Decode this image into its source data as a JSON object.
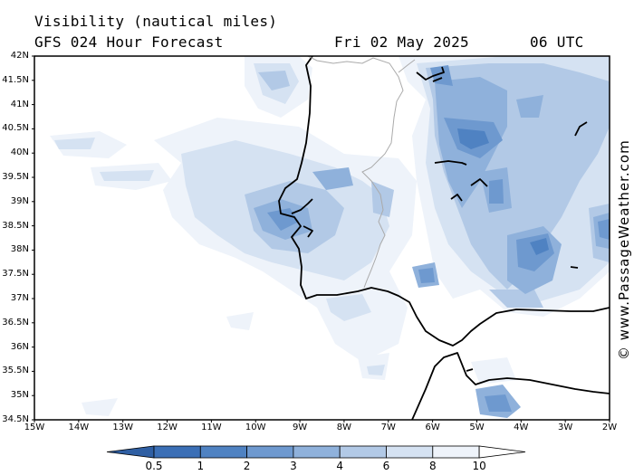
{
  "header": {
    "title": "Visibility (nautical miles)",
    "subtitle": "GFS 024 Hour Forecast",
    "date": "Fri 02 May 2025",
    "time": "06 UTC"
  },
  "credit": "© www.PassageWeather.com",
  "map": {
    "lat_labels": [
      "42N",
      "41.5N",
      "41N",
      "40.5N",
      "40N",
      "39.5N",
      "39N",
      "38.5N",
      "38N",
      "37.5N",
      "37N",
      "36.5N",
      "36N",
      "35.5N",
      "35N",
      "34.5N"
    ],
    "lon_labels": [
      "15W",
      "14W",
      "13W",
      "12W",
      "11W",
      "10W",
      "9W",
      "8W",
      "7W",
      "6W",
      "5W",
      "4W",
      "3W",
      "2W"
    ],
    "lat_range": [
      34.5,
      42
    ],
    "lon_range": [
      -15,
      -2
    ]
  },
  "colorbar": {
    "labels": [
      "0.5",
      "1",
      "2",
      "3",
      "4",
      "6",
      "8",
      "10"
    ],
    "colors": [
      "#3b6fb6",
      "#4f82c2",
      "#6e99cf",
      "#8fb1db",
      "#b2c9e6",
      "#d5e2f2",
      "#eef3fa",
      "#ffffff"
    ]
  },
  "visibility_zones": [
    {
      "level": "8",
      "color": "#eef3fa"
    },
    {
      "level": "6",
      "color": "#d5e2f2"
    },
    {
      "level": "4",
      "color": "#b2c9e6"
    },
    {
      "level": "3",
      "color": "#8fb1db"
    },
    {
      "level": "2",
      "color": "#6e99cf"
    },
    {
      "level": "1",
      "color": "#4f82c2"
    }
  ]
}
